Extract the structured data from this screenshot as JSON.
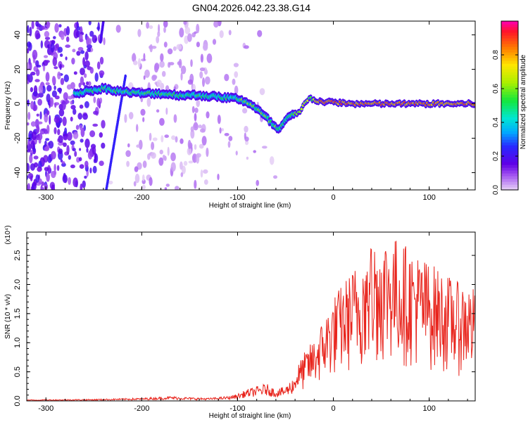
{
  "title": "GN04.2026.042.23.38.G14",
  "chart_data": [
    {
      "type": "heatmap",
      "xlabel": "Height of straight line (km)",
      "ylabel": "Frequency (Hz)",
      "xlim": [
        -320,
        148
      ],
      "ylim": [
        -50,
        48
      ],
      "xticks": [
        -300,
        -200,
        -100,
        0,
        100
      ],
      "yticks": [
        -40,
        -20,
        0,
        20,
        40
      ],
      "colorbar": {
        "label": "Normalized spectral amplitude",
        "range": [
          0,
          1
        ],
        "ticks": [
          0.0,
          0.2,
          0.4,
          0.6,
          0.8
        ]
      },
      "ridge": {
        "x": [
          -270,
          -250,
          -240,
          -220,
          -200,
          -180,
          -160,
          -140,
          -120,
          -100,
          -90,
          -80,
          -70,
          -65,
          -60,
          -57,
          -50,
          -45,
          -40,
          -35,
          -30,
          -25,
          -20,
          -10,
          0,
          20,
          40,
          60,
          80,
          100,
          120,
          148
        ],
        "y": [
          6,
          8,
          9,
          7,
          6,
          6,
          5,
          5,
          4,
          3,
          1,
          -3,
          -8,
          -11,
          -14,
          -15,
          -10,
          -7,
          -6,
          -5,
          0,
          4,
          2,
          1,
          1,
          0,
          0,
          0,
          0,
          0,
          0,
          0
        ]
      }
    },
    {
      "type": "line",
      "xlabel": "Height of straight line (km)",
      "ylabel": "SNR (10 * v/v)",
      "scale_label": "(x10⁴)",
      "xlim": [
        -320,
        148
      ],
      "ylim": [
        0,
        2.9
      ],
      "xticks": [
        -300,
        -200,
        -100,
        0,
        100
      ],
      "yticks": [
        0.0,
        0.5,
        1.0,
        1.5,
        2.0,
        2.5
      ],
      "series": [
        {
          "color": "#e8241c",
          "envelope": {
            "x": [
              -320,
              -250,
              -200,
              -170,
              -150,
              -130,
              -110,
              -100,
              -90,
              -80,
              -70,
              -60,
              -50,
              -40,
              -30,
              -20,
              -10,
              0,
              10,
              20,
              30,
              40,
              50,
              60,
              70,
              80,
              90,
              100,
              110,
              120,
              130,
              140,
              148
            ],
            "y": [
              0.02,
              0.03,
              0.05,
              0.08,
              0.06,
              0.05,
              0.08,
              0.12,
              0.2,
              0.25,
              0.3,
              0.2,
              0.25,
              0.45,
              0.7,
              0.9,
              1.2,
              1.5,
              1.7,
              1.9,
              2.1,
              2.3,
              2.4,
              2.4,
              2.3,
              2.2,
              2.1,
              2.0,
              1.9,
              1.8,
              1.7,
              1.7,
              1.6
            ]
          }
        }
      ]
    }
  ]
}
